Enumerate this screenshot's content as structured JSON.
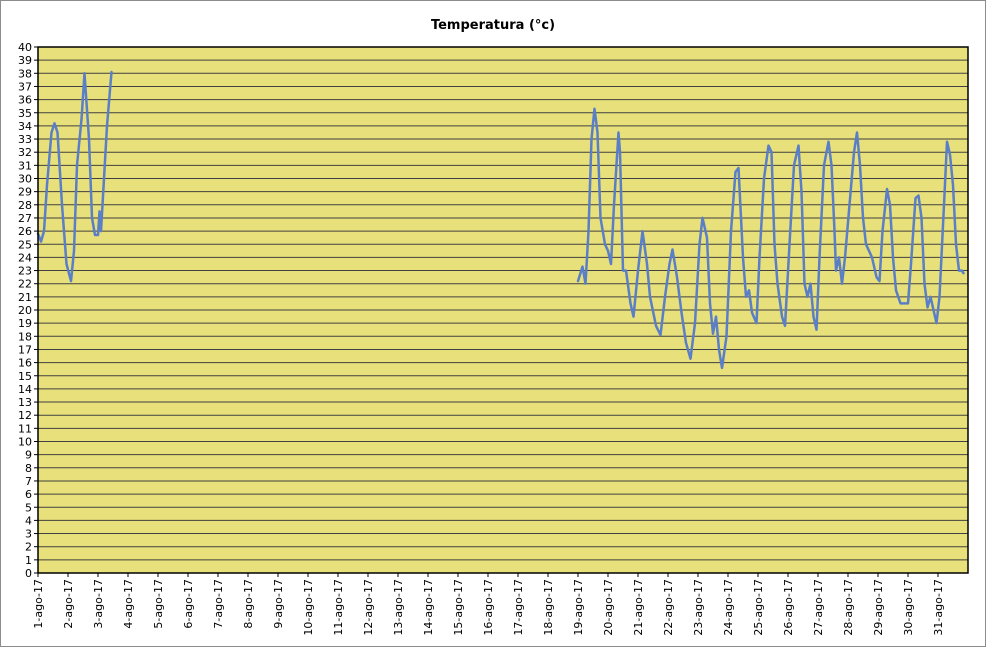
{
  "chart_data": {
    "type": "line",
    "title": "Temperatura (°c)",
    "xlabel": "",
    "ylabel": "",
    "ylim": [
      0,
      40
    ],
    "xlim": [
      1,
      32
    ],
    "grid": true,
    "legend": "none",
    "plot_background": "#e8e07a",
    "gridline_color": "#404040",
    "line_color": "#5a7fc7",
    "y_ticks": [
      "0",
      "1",
      "2",
      "3",
      "4",
      "5",
      "6",
      "7",
      "8",
      "9",
      "10",
      "11",
      "12",
      "13",
      "14",
      "15",
      "16",
      "17",
      "18",
      "19",
      "20",
      "21",
      "22",
      "23",
      "24",
      "25",
      "26",
      "27",
      "28",
      "29",
      "30",
      "31",
      "32",
      "33",
      "34",
      "35",
      "36",
      "37",
      "38",
      "39",
      "40"
    ],
    "x_tick_labels": [
      "1-ago-17",
      "2-ago-17",
      "3-ago-17",
      "4-ago-17",
      "5-ago-17",
      "6-ago-17",
      "7-ago-17",
      "8-ago-17",
      "9-ago-17",
      "10-ago-17",
      "11-ago-17",
      "12-ago-17",
      "13-ago-17",
      "14-ago-17",
      "15-ago-17",
      "16-ago-17",
      "17-ago-17",
      "18-ago-17",
      "19-ago-17",
      "20-ago-17",
      "21-ago-17",
      "22-ago-17",
      "23-ago-17",
      "24-ago-17",
      "25-ago-17",
      "26-ago-17",
      "27-ago-17",
      "28-ago-17",
      "29-ago-17",
      "30-ago-17",
      "31-ago-17"
    ],
    "series": [
      {
        "segments": [
          [
            [
              1.0,
              25.8
            ],
            [
              1.1,
              25.2
            ],
            [
              1.2,
              26.0
            ],
            [
              1.3,
              29.5
            ],
            [
              1.45,
              33.5
            ],
            [
              1.55,
              34.2
            ],
            [
              1.65,
              33.5
            ],
            [
              1.8,
              28.0
            ],
            [
              1.95,
              23.5
            ],
            [
              2.1,
              22.2
            ],
            [
              2.2,
              24.5
            ],
            [
              2.3,
              31.0
            ],
            [
              2.45,
              34.5
            ],
            [
              2.55,
              38.0
            ],
            [
              2.7,
              33.0
            ],
            [
              2.8,
              27.0
            ],
            [
              2.9,
              25.7
            ],
            [
              3.0,
              25.7
            ],
            [
              3.05,
              27.5
            ],
            [
              3.1,
              26.0
            ],
            [
              3.2,
              30.0
            ],
            [
              3.3,
              34.0
            ],
            [
              3.45,
              38.1
            ]
          ],
          [
            [
              19.0,
              22.2
            ],
            [
              19.15,
              23.3
            ],
            [
              19.25,
              22.0
            ],
            [
              19.35,
              26.0
            ],
            [
              19.45,
              33.0
            ],
            [
              19.55,
              35.3
            ],
            [
              19.65,
              33.5
            ],
            [
              19.75,
              27.0
            ],
            [
              19.9,
              25.0
            ],
            [
              20.0,
              24.5
            ],
            [
              20.1,
              23.5
            ],
            [
              20.2,
              28.0
            ],
            [
              20.35,
              33.5
            ],
            [
              20.4,
              32.0
            ],
            [
              20.5,
              23.0
            ],
            [
              20.6,
              23.0
            ],
            [
              20.75,
              20.5
            ],
            [
              20.85,
              19.5
            ],
            [
              21.0,
              23.0
            ],
            [
              21.15,
              26.0
            ],
            [
              21.3,
              23.5
            ],
            [
              21.4,
              21.0
            ],
            [
              21.6,
              18.8
            ],
            [
              21.75,
              18.1
            ],
            [
              21.9,
              21.0
            ],
            [
              22.05,
              23.5
            ],
            [
              22.15,
              24.6
            ],
            [
              22.3,
              22.5
            ],
            [
              22.45,
              19.8
            ],
            [
              22.6,
              17.5
            ],
            [
              22.75,
              16.3
            ],
            [
              22.9,
              19.0
            ],
            [
              23.05,
              25.0
            ],
            [
              23.15,
              27.0
            ],
            [
              23.3,
              25.5
            ],
            [
              23.4,
              20.5
            ],
            [
              23.5,
              18.2
            ],
            [
              23.6,
              19.5
            ],
            [
              23.7,
              17.0
            ],
            [
              23.8,
              15.6
            ],
            [
              23.95,
              18.0
            ],
            [
              24.1,
              26.0
            ],
            [
              24.25,
              30.5
            ],
            [
              24.35,
              30.8
            ],
            [
              24.5,
              24.0
            ],
            [
              24.6,
              21.0
            ],
            [
              24.7,
              21.5
            ],
            [
              24.8,
              19.8
            ],
            [
              24.95,
              19.0
            ],
            [
              25.05,
              24.0
            ],
            [
              25.2,
              30.0
            ],
            [
              25.35,
              32.5
            ],
            [
              25.45,
              32.0
            ],
            [
              25.55,
              25.0
            ],
            [
              25.65,
              22.0
            ],
            [
              25.8,
              19.5
            ],
            [
              25.9,
              18.8
            ],
            [
              26.05,
              25.0
            ],
            [
              26.2,
              31.0
            ],
            [
              26.35,
              32.5
            ],
            [
              26.45,
              29.0
            ],
            [
              26.55,
              22.0
            ],
            [
              26.65,
              21.0
            ],
            [
              26.75,
              22.0
            ],
            [
              26.85,
              19.5
            ],
            [
              26.95,
              18.5
            ],
            [
              27.05,
              24.0
            ],
            [
              27.2,
              31.0
            ],
            [
              27.35,
              32.8
            ],
            [
              27.45,
              31.0
            ],
            [
              27.55,
              26.0
            ],
            [
              27.6,
              23.0
            ],
            [
              27.7,
              24.0
            ],
            [
              27.8,
              22.0
            ],
            [
              27.9,
              24.0
            ],
            [
              28.05,
              28.0
            ],
            [
              28.2,
              32.0
            ],
            [
              28.3,
              33.5
            ],
            [
              28.4,
              31.0
            ],
            [
              28.5,
              27.0
            ],
            [
              28.6,
              25.0
            ],
            [
              28.7,
              24.5
            ],
            [
              28.8,
              24.0
            ],
            [
              28.95,
              22.5
            ],
            [
              29.05,
              22.2
            ],
            [
              29.15,
              26.0
            ],
            [
              29.3,
              29.2
            ],
            [
              29.4,
              28.0
            ],
            [
              29.5,
              24.0
            ],
            [
              29.6,
              21.5
            ],
            [
              29.75,
              20.5
            ],
            [
              29.85,
              20.5
            ],
            [
              30.0,
              20.5
            ],
            [
              30.1,
              23.5
            ],
            [
              30.25,
              28.5
            ],
            [
              30.35,
              28.7
            ],
            [
              30.45,
              27.0
            ],
            [
              30.55,
              22.0
            ],
            [
              30.65,
              20.2
            ],
            [
              30.75,
              21.0
            ],
            [
              30.85,
              20.0
            ],
            [
              30.95,
              19.0
            ],
            [
              31.05,
              21.0
            ],
            [
              31.2,
              28.0
            ],
            [
              31.3,
              32.8
            ],
            [
              31.4,
              31.8
            ],
            [
              31.5,
              29.5
            ],
            [
              31.6,
              25.0
            ],
            [
              31.7,
              23.0
            ],
            [
              31.8,
              23.0
            ],
            [
              31.85,
              22.8
            ]
          ]
        ]
      }
    ]
  }
}
